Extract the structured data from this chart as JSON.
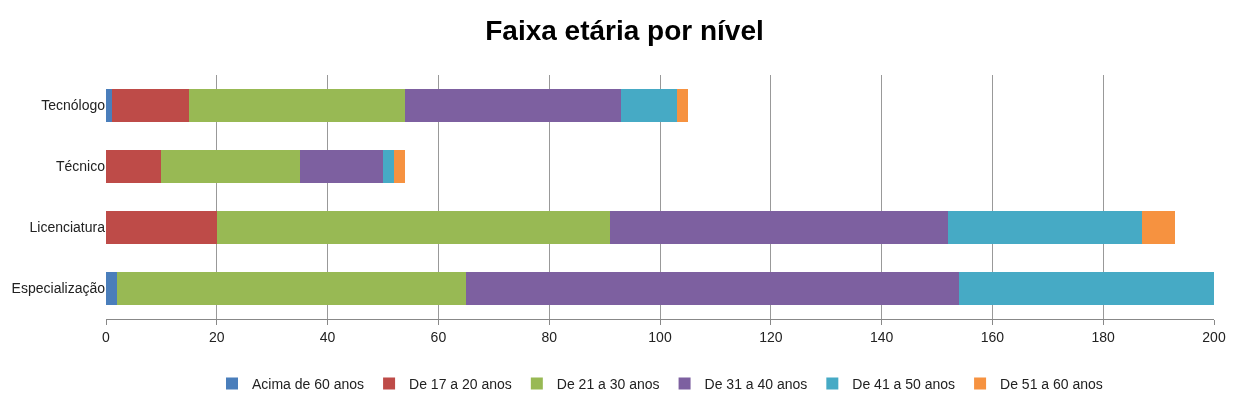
{
  "chart_data": {
    "type": "bar",
    "title": "Faixa etária por nível",
    "orientation": "horizontal",
    "stacked": true,
    "categories": [
      "Tecnólogo",
      "Técnico",
      "Licenciatura",
      "Especialização"
    ],
    "series": [
      {
        "name": "Acima de 60 anos",
        "color": "#4a7ebb",
        "values": [
          1,
          0,
          0,
          2
        ]
      },
      {
        "name": "De 17 a 20 anos",
        "color": "#be4b48",
        "values": [
          14,
          10,
          20,
          0
        ]
      },
      {
        "name": "De 21 a 30 anos",
        "color": "#98b954",
        "values": [
          39,
          25,
          71,
          63
        ]
      },
      {
        "name": "De 31 a 40 anos",
        "color": "#7d60a0",
        "values": [
          39,
          15,
          61,
          89
        ]
      },
      {
        "name": "De 41 a 50 anos",
        "color": "#46aac5",
        "values": [
          10,
          2,
          35,
          46
        ]
      },
      {
        "name": "De 51 a 60 anos",
        "color": "#f69240",
        "values": [
          2,
          2,
          6,
          0
        ]
      }
    ],
    "xlim": [
      0,
      200
    ],
    "xticks": [
      0,
      20,
      40,
      60,
      80,
      100,
      120,
      140,
      160,
      180,
      200
    ],
    "grid": "x",
    "legend": "bottom"
  }
}
